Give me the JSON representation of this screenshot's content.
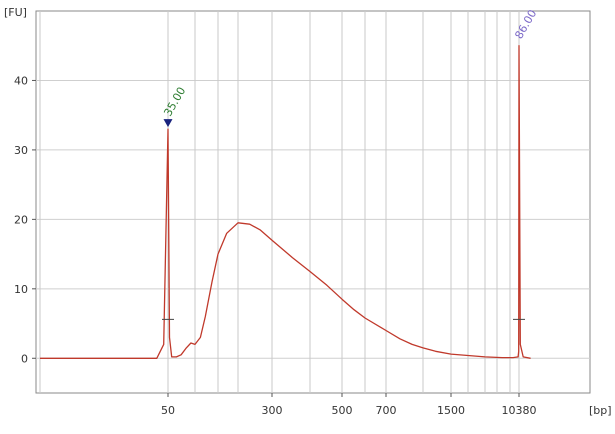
{
  "chart_data": {
    "type": "line",
    "title": "",
    "y_unit_label": "[FU]",
    "x_unit_label": "[bp]",
    "ylim": [
      -5,
      50
    ],
    "y_ticks": [
      0,
      10,
      20,
      30,
      40
    ],
    "x_ticks": [
      {
        "label": "50",
        "value": 50
      },
      {
        "label": "300",
        "value": 300
      },
      {
        "label": "500",
        "value": 500
      },
      {
        "label": "700",
        "value": 700
      },
      {
        "label": "1500",
        "value": 1500
      },
      {
        "label": "10380",
        "value": 10380
      }
    ],
    "grid": true,
    "line_color": "#c0392b",
    "ladder_sizes_bp": [
      15,
      50,
      100,
      150,
      200,
      300,
      400,
      500,
      600,
      700,
      1000,
      1500,
      2000,
      3000,
      4000,
      7000,
      10380
    ],
    "series": [
      {
        "x": [
          15,
          30,
          45,
          48,
          50,
          52,
          55,
          62,
          70,
          80,
          90,
          100,
          110,
          120,
          135,
          150,
          170,
          200,
          230,
          260,
          300,
          350,
          400,
          450,
          500,
          550,
          600,
          700,
          800,
          900,
          1000,
          1200,
          1500,
          2000,
          3000,
          5000,
          8000,
          10000,
          10250,
          10380,
          10450,
          10600,
          11000
        ],
        "y": [
          0,
          0,
          0,
          2,
          33,
          3,
          0.2,
          0.2,
          0.5,
          1.5,
          2.2,
          2.0,
          3.0,
          6.0,
          11.0,
          15.0,
          18.0,
          19.5,
          19.3,
          18.5,
          17.0,
          14.5,
          12.5,
          10.5,
          8.5,
          7.0,
          5.8,
          4.0,
          2.8,
          2.0,
          1.5,
          1.0,
          0.6,
          0.4,
          0.2,
          0.1,
          0.1,
          0.2,
          1.0,
          45,
          2,
          0.2,
          0
        ]
      }
    ],
    "peaks": [
      {
        "label": "35.00",
        "x": 50,
        "y": 33,
        "color": "#2e7d32",
        "marker": "triangle-down"
      },
      {
        "label": "86.00",
        "x": 10380,
        "y": 45,
        "color": "#7b68c8"
      }
    ]
  }
}
